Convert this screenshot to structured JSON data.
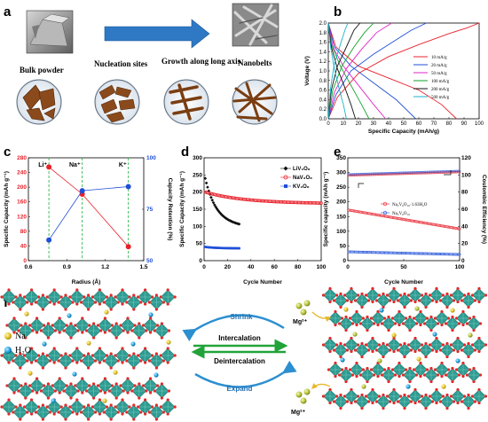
{
  "panels": {
    "a": {
      "letter": "a",
      "labels": [
        "Bulk powder",
        "Nucleation sites",
        "Growth along long axis",
        "Nanobelts"
      ]
    },
    "b": {
      "letter": "b",
      "chart_data": {
        "type": "line",
        "xlabel": "Specific Capacity (mAh/g)",
        "ylabel": "Voltage (V)",
        "xlim": [
          0,
          100
        ],
        "ylim": [
          0.0,
          2.0
        ],
        "xticks": [
          0,
          10,
          20,
          30,
          40,
          50,
          60,
          70,
          80,
          90,
          100
        ],
        "yticks": [
          0.0,
          0.2,
          0.4,
          0.6,
          0.8,
          1.0,
          1.2,
          1.4,
          1.6,
          1.8,
          2.0
        ],
        "legend_position": "right",
        "series": [
          {
            "name": "10 mA/g",
            "color": "#e8202a",
            "charge": {
              "x": [
                0,
                6,
                20,
                40,
                60,
                80,
                92,
                100
              ],
              "y": [
                0.0,
                0.45,
                0.95,
                1.3,
                1.55,
                1.78,
                1.9,
                2.0
              ]
            },
            "discharge": {
              "x": [
                0,
                5,
                20,
                40,
                60,
                75,
                85
              ],
              "y": [
                2.0,
                1.5,
                1.1,
                0.85,
                0.6,
                0.3,
                0.0
              ]
            }
          },
          {
            "name": "20 mA/g",
            "color": "#1f4fd8",
            "charge": {
              "x": [
                0,
                5,
                15,
                30,
                45,
                55,
                65
              ],
              "y": [
                0.0,
                0.5,
                1.0,
                1.35,
                1.65,
                1.85,
                2.0
              ]
            },
            "discharge": {
              "x": [
                0,
                4,
                15,
                30,
                45,
                58
              ],
              "y": [
                2.0,
                1.5,
                1.1,
                0.75,
                0.4,
                0.0
              ]
            }
          },
          {
            "name": "50 mA/g",
            "color": "#e026c8",
            "charge": {
              "x": [
                0,
                4,
                12,
                22,
                32,
                42
              ],
              "y": [
                0.0,
                0.55,
                1.05,
                1.45,
                1.8,
                2.0
              ]
            },
            "discharge": {
              "x": [
                0,
                3,
                10,
                20,
                30,
                38
              ],
              "y": [
                2.0,
                1.5,
                1.1,
                0.7,
                0.3,
                0.0
              ]
            }
          },
          {
            "name": "100 mA/g",
            "color": "#12a32a",
            "charge": {
              "x": [
                0,
                3,
                9,
                17,
                24,
                30
              ],
              "y": [
                0.0,
                0.6,
                1.1,
                1.5,
                1.8,
                2.0
              ]
            },
            "discharge": {
              "x": [
                0,
                2,
                8,
                15,
                22,
                27
              ],
              "y": [
                2.0,
                1.55,
                1.1,
                0.7,
                0.3,
                0.0
              ]
            }
          },
          {
            "name": "200 mA/g",
            "color": "#111111",
            "charge": {
              "x": [
                0,
                2,
                6,
                12,
                17,
                21
              ],
              "y": [
                0.0,
                0.6,
                1.1,
                1.5,
                1.85,
                2.0
              ]
            },
            "discharge": {
              "x": [
                0,
                2,
                6,
                11,
                15,
                18
              ],
              "y": [
                2.0,
                1.5,
                1.05,
                0.65,
                0.3,
                0.0
              ]
            }
          },
          {
            "name": "500 mA/g",
            "color": "#19b3c9",
            "charge": {
              "x": [
                0,
                1.5,
                4,
                8,
                11,
                13
              ],
              "y": [
                0.0,
                0.65,
                1.15,
                1.55,
                1.85,
                2.0
              ]
            },
            "discharge": {
              "x": [
                0,
                1.5,
                4,
                7,
                10,
                12
              ],
              "y": [
                2.0,
                1.5,
                1.05,
                0.65,
                0.3,
                0.0
              ]
            }
          }
        ]
      }
    },
    "c": {
      "letter": "c",
      "chart_data": {
        "type": "line",
        "xlabel": "Radius (Å)",
        "ylabel": "Specific Capacity (mAh g⁻¹)",
        "y2label": "Capacity Retention (%)",
        "xlim": [
          0.6,
          1.5
        ],
        "ylim": [
          0,
          280
        ],
        "y2lim": [
          50,
          100
        ],
        "xticks": [
          "0.6",
          "0.9",
          "1.2",
          "1.5"
        ],
        "yticks": [
          "0",
          "40",
          "80",
          "120",
          "160",
          "200",
          "240",
          "280"
        ],
        "y2ticks": [
          "50",
          "75",
          "100"
        ],
        "ions": [
          "Li⁺",
          "Na⁺",
          "K⁺"
        ],
        "radius": [
          0.76,
          1.02,
          1.38
        ],
        "capacity": {
          "color": "#e8202a",
          "values": [
            255,
            181,
            38
          ]
        },
        "retention": {
          "color": "#1f4fd8",
          "values": [
            60,
            84,
            86
          ]
        }
      }
    },
    "d": {
      "letter": "d",
      "chart_data": {
        "type": "scatter",
        "xlabel": "Cycle Number",
        "ylabel": "Specific Capacity (mAh g⁻¹)",
        "xlim": [
          0,
          100
        ],
        "ylim": [
          0,
          300
        ],
        "xticks": [
          0,
          20,
          40,
          60,
          80,
          100
        ],
        "yticks": [
          0,
          50,
          100,
          150,
          200,
          250,
          300
        ],
        "legend_position": "top-right",
        "series": [
          {
            "name": "LiV₃O₈",
            "color": "#111111",
            "marker": "diamond",
            "start": 240,
            "end": 107,
            "cycles": 30
          },
          {
            "name": "NaV₃O₈",
            "color": "#e8202a",
            "marker": "circle",
            "start": 200,
            "end": 168,
            "cycles": 100
          },
          {
            "name": "KV₃O₈",
            "color": "#1f4fd8",
            "marker": "square",
            "start": 40,
            "end": 36,
            "cycles": 30
          }
        ]
      }
    },
    "e": {
      "letter": "e",
      "chart_data": {
        "type": "scatter",
        "xlabel": "Cycle Number",
        "ylabel": "Specific capacity (mAh g⁻¹)",
        "y2label": "Coulombic Efficiency (%)",
        "xlim": [
          0,
          100
        ],
        "ylim": [
          0,
          350
        ],
        "y2lim": [
          0,
          120
        ],
        "xticks": [
          0,
          50,
          100
        ],
        "yticks": [
          0,
          50,
          100,
          150,
          200,
          250,
          300,
          350
        ],
        "y2ticks": [
          0,
          20,
          40,
          60,
          80,
          100,
          120
        ],
        "legend_position": "center",
        "series": [
          {
            "name": "Na₂V₆O₁₆·1.63H₂O",
            "color": "#e8202a",
            "start": 172,
            "end": 108
          },
          {
            "name": "Na₂V₆O₁₆",
            "color": "#1f4fd8",
            "start": 30,
            "end": 21
          }
        ],
        "efficiency": {
          "start": 100,
          "end": 104
        }
      }
    },
    "f": {
      "letter": "f",
      "legend": [
        {
          "label": "Na",
          "color": "#f5d23a"
        },
        {
          "label": "H₂O",
          "color": "#2aa7e0"
        }
      ],
      "arrows": [
        "Shrink",
        "Intercalation",
        "Deintercalation",
        "Expand"
      ],
      "ion": "Mg²⁺"
    }
  }
}
